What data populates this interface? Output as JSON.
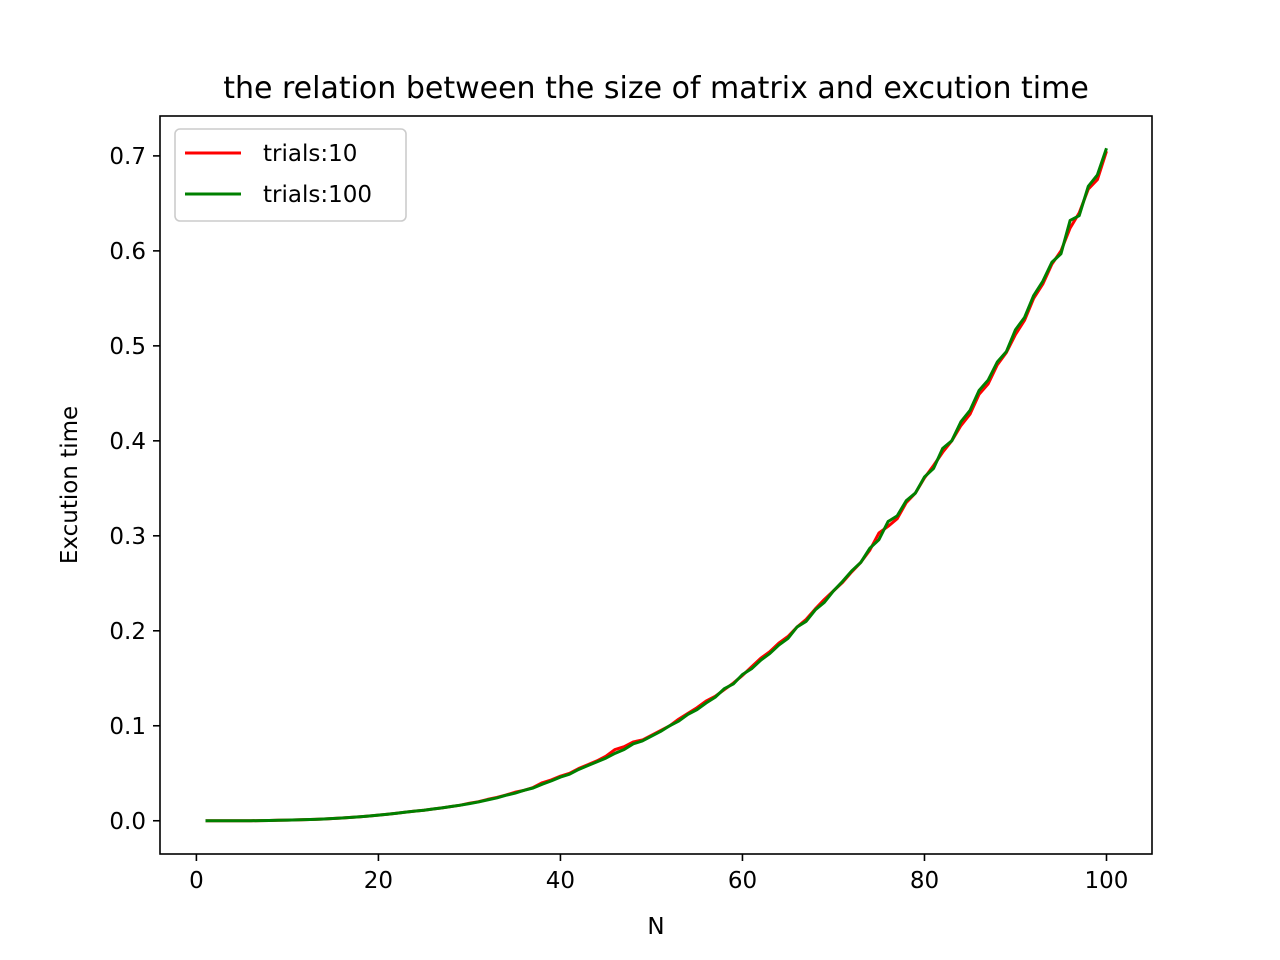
{
  "chart_data": {
    "type": "line",
    "title": "the relation between the size of matrix and excution time",
    "xlabel": "N",
    "ylabel": "Excution time",
    "xlim": [
      -4,
      105
    ],
    "ylim": [
      -0.035,
      0.742
    ],
    "xticks": [
      0,
      20,
      40,
      60,
      80,
      100
    ],
    "xtick_labels": [
      "0",
      "20",
      "40",
      "60",
      "80",
      "100"
    ],
    "yticks": [
      0.0,
      0.1,
      0.2,
      0.3,
      0.4,
      0.5,
      0.6,
      0.7
    ],
    "ytick_labels": [
      "0.0",
      "0.1",
      "0.2",
      "0.3",
      "0.4",
      "0.5",
      "0.6",
      "0.7"
    ],
    "grid": false,
    "legend_position": "top-left",
    "x": [
      1,
      2,
      3,
      4,
      5,
      6,
      7,
      8,
      9,
      10,
      11,
      12,
      13,
      14,
      15,
      16,
      17,
      18,
      19,
      20,
      21,
      22,
      23,
      24,
      25,
      26,
      27,
      28,
      29,
      30,
      31,
      32,
      33,
      34,
      35,
      36,
      37,
      38,
      39,
      40,
      41,
      42,
      43,
      44,
      45,
      46,
      47,
      48,
      49,
      50,
      51,
      52,
      53,
      54,
      55,
      56,
      57,
      58,
      59,
      60,
      61,
      62,
      63,
      64,
      65,
      66,
      67,
      68,
      69,
      70,
      71,
      72,
      73,
      74,
      75,
      76,
      77,
      78,
      79,
      80,
      81,
      82,
      83,
      84,
      85,
      86,
      87,
      88,
      89,
      90,
      91,
      92,
      93,
      94,
      95,
      96,
      97,
      98,
      99,
      100
    ],
    "series": [
      {
        "name": "trials:10",
        "color": "#ff0000",
        "values": [
          0.0,
          0.0,
          0.0,
          0.0,
          0.0,
          0.0,
          0.0002,
          0.0003,
          0.0005,
          0.0007,
          0.0009,
          0.0012,
          0.0015,
          0.0019,
          0.0024,
          0.0029,
          0.0035,
          0.0042,
          0.005,
          0.0059,
          0.0068,
          0.0079,
          0.0091,
          0.0101,
          0.0111,
          0.0124,
          0.0136,
          0.015,
          0.0164,
          0.0185,
          0.02,
          0.0225,
          0.0245,
          0.027,
          0.03,
          0.032,
          0.035,
          0.04,
          0.043,
          0.047,
          0.05,
          0.055,
          0.059,
          0.063,
          0.068,
          0.075,
          0.078,
          0.083,
          0.085,
          0.09,
          0.095,
          0.1,
          0.107,
          0.113,
          0.119,
          0.126,
          0.131,
          0.138,
          0.145,
          0.153,
          0.162,
          0.171,
          0.178,
          0.187,
          0.194,
          0.204,
          0.212,
          0.223,
          0.233,
          0.242,
          0.251,
          0.262,
          0.272,
          0.285,
          0.303,
          0.31,
          0.318,
          0.335,
          0.345,
          0.361,
          0.374,
          0.388,
          0.4,
          0.416,
          0.428,
          0.449,
          0.46,
          0.48,
          0.493,
          0.512,
          0.527,
          0.55,
          0.565,
          0.586,
          0.6,
          0.624,
          0.64,
          0.665,
          0.675,
          0.705
        ]
      },
      {
        "name": "trials:100",
        "color": "#008000",
        "values": [
          0.0,
          0.0,
          0.0,
          0.0,
          0.0,
          0.0,
          0.0002,
          0.0003,
          0.0005,
          0.0007,
          0.0009,
          0.0012,
          0.0015,
          0.0019,
          0.0024,
          0.0029,
          0.0035,
          0.0042,
          0.005,
          0.0059,
          0.0068,
          0.0079,
          0.0091,
          0.0101,
          0.0111,
          0.0124,
          0.0136,
          0.015,
          0.0164,
          0.018,
          0.0198,
          0.022,
          0.024,
          0.0268,
          0.029,
          0.032,
          0.0345,
          0.0385,
          0.042,
          0.046,
          0.049,
          0.054,
          0.058,
          0.062,
          0.066,
          0.071,
          0.075,
          0.081,
          0.084,
          0.089,
          0.094,
          0.1,
          0.105,
          0.112,
          0.117,
          0.124,
          0.13,
          0.139,
          0.144,
          0.154,
          0.16,
          0.169,
          0.176,
          0.185,
          0.192,
          0.204,
          0.21,
          0.222,
          0.23,
          0.242,
          0.252,
          0.263,
          0.272,
          0.287,
          0.296,
          0.315,
          0.321,
          0.337,
          0.345,
          0.362,
          0.371,
          0.392,
          0.4,
          0.42,
          0.432,
          0.453,
          0.464,
          0.483,
          0.494,
          0.517,
          0.53,
          0.553,
          0.568,
          0.588,
          0.597,
          0.632,
          0.637,
          0.668,
          0.68,
          0.708
        ]
      }
    ]
  }
}
